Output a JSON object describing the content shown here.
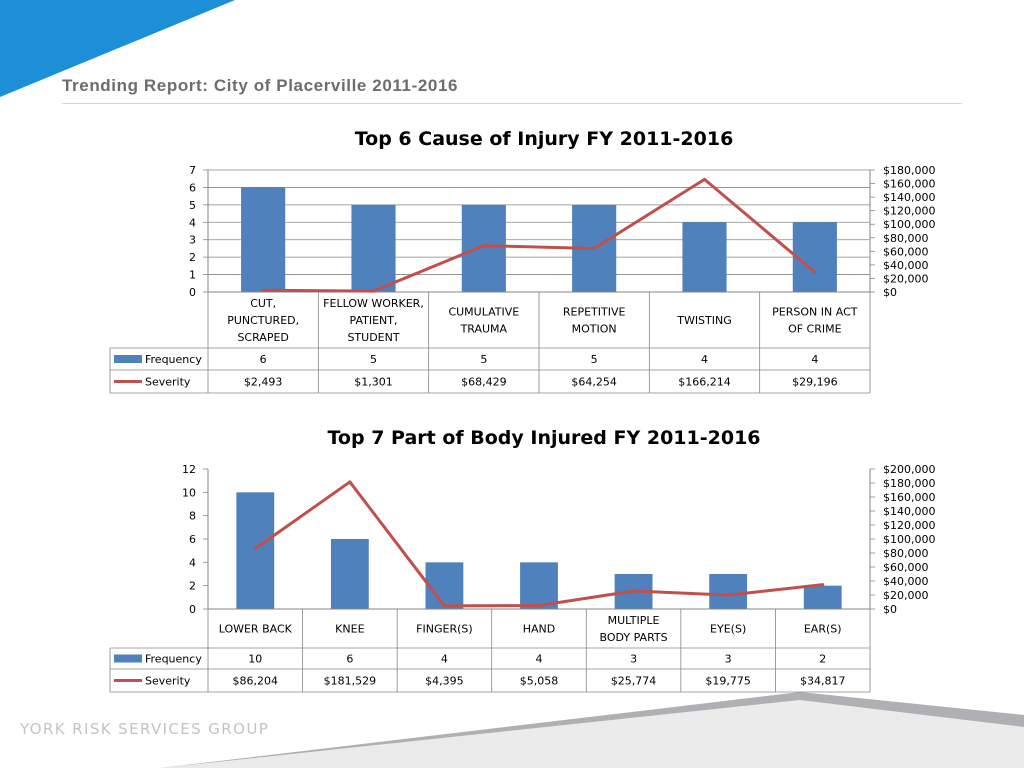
{
  "header": {
    "title": "Trending Report: City of Placerville 2011-2016"
  },
  "footer": {
    "company": "YORK RISK SERVICES GROUP"
  },
  "colors": {
    "bar": "#4f81bd",
    "line": "#c0504d",
    "grid": "#868686",
    "rule": "#d4d4d4"
  },
  "chart_data": [
    {
      "type": "bar",
      "title": "Top 6 Cause of Injury FY 2011-2016",
      "categories": [
        [
          "CUT,",
          "PUNCTURED,",
          "SCRAPED"
        ],
        [
          "FELLOW WORKER,",
          "PATIENT,",
          "STUDENT"
        ],
        [
          "CUMULATIVE",
          "TRAUMA"
        ],
        [
          "REPETITIVE",
          "MOTION"
        ],
        [
          "TWISTING"
        ],
        [
          "PERSON IN ACT",
          "OF CRIME"
        ]
      ],
      "series": [
        {
          "name": "Frequency",
          "type": "bar",
          "axis": "left",
          "values": [
            6,
            5,
            5,
            5,
            4,
            4
          ]
        },
        {
          "name": "Severity",
          "type": "line",
          "axis": "right",
          "values": [
            2493,
            1301,
            68429,
            64254,
            166214,
            29196
          ]
        }
      ],
      "table_rows": [
        [
          "6",
          "5",
          "5",
          "5",
          "4",
          "4"
        ],
        [
          "$2,493",
          "$1,301",
          "$68,429",
          "$64,254",
          "$166,214",
          "$29,196"
        ]
      ],
      "y_left": {
        "range": [
          0,
          7
        ],
        "ticks": [
          "0",
          "1",
          "2",
          "3",
          "4",
          "5",
          "6",
          "7"
        ]
      },
      "y_right": {
        "range": [
          0,
          180000
        ],
        "ticks": [
          "$0",
          "$20,000",
          "$40,000",
          "$60,000",
          "$80,000",
          "$100,000",
          "$120,000",
          "$140,000",
          "$160,000",
          "$180,000"
        ]
      },
      "grid": true,
      "legend": "data-table"
    },
    {
      "type": "bar",
      "title": "Top 7 Part of Body Injured FY 2011-2016",
      "categories": [
        [
          "LOWER BACK"
        ],
        [
          "KNEE"
        ],
        [
          "FINGER(S)"
        ],
        [
          "HAND"
        ],
        [
          "MULTIPLE",
          "BODY PARTS"
        ],
        [
          "EYE(S)"
        ],
        [
          "EAR(S)"
        ]
      ],
      "series": [
        {
          "name": "Frequency",
          "type": "bar",
          "axis": "left",
          "values": [
            10,
            6,
            4,
            4,
            3,
            3,
            2
          ]
        },
        {
          "name": "Severity",
          "type": "line",
          "axis": "right",
          "values": [
            86204,
            181529,
            4395,
            5058,
            25774,
            19775,
            34817
          ]
        }
      ],
      "table_rows": [
        [
          "10",
          "6",
          "4",
          "4",
          "3",
          "3",
          "2"
        ],
        [
          "$86,204",
          "$181,529",
          "$4,395",
          "$5,058",
          "$25,774",
          "$19,775",
          "$34,817"
        ]
      ],
      "y_left": {
        "range": [
          0,
          12
        ],
        "ticks": [
          "0",
          "2",
          "4",
          "6",
          "8",
          "10",
          "12"
        ]
      },
      "y_right": {
        "range": [
          0,
          200000
        ],
        "ticks": [
          "$0",
          "$20,000",
          "$40,000",
          "$60,000",
          "$80,000",
          "$100,000",
          "$120,000",
          "$140,000",
          "$160,000",
          "$180,000",
          "$200,000"
        ]
      },
      "grid": false,
      "legend": "data-table"
    }
  ]
}
